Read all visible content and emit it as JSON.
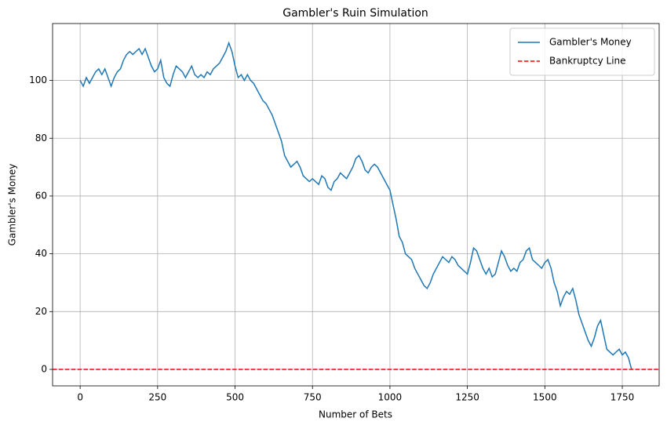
{
  "chart_data": {
    "type": "line",
    "title": "Gambler's Ruin Simulation",
    "xlabel": "Number of Bets",
    "ylabel": "Gambler's Money",
    "x": [
      0,
      10,
      20,
      30,
      40,
      50,
      60,
      70,
      80,
      90,
      100,
      110,
      120,
      130,
      140,
      150,
      160,
      170,
      180,
      190,
      200,
      210,
      220,
      230,
      240,
      250,
      260,
      270,
      280,
      290,
      300,
      310,
      320,
      330,
      340,
      350,
      360,
      370,
      380,
      390,
      400,
      410,
      420,
      430,
      440,
      450,
      460,
      470,
      480,
      490,
      500,
      510,
      520,
      530,
      540,
      550,
      560,
      570,
      580,
      590,
      600,
      610,
      620,
      630,
      640,
      650,
      660,
      670,
      680,
      690,
      700,
      710,
      720,
      730,
      740,
      750,
      760,
      770,
      780,
      790,
      800,
      810,
      820,
      830,
      840,
      850,
      860,
      870,
      880,
      890,
      900,
      910,
      920,
      930,
      940,
      950,
      960,
      970,
      980,
      990,
      1000,
      1010,
      1020,
      1030,
      1040,
      1050,
      1060,
      1070,
      1080,
      1090,
      1100,
      1110,
      1120,
      1130,
      1140,
      1150,
      1160,
      1170,
      1180,
      1190,
      1200,
      1210,
      1220,
      1230,
      1240,
      1250,
      1260,
      1270,
      1280,
      1290,
      1300,
      1310,
      1320,
      1330,
      1340,
      1350,
      1360,
      1370,
      1380,
      1390,
      1400,
      1410,
      1420,
      1430,
      1440,
      1450,
      1460,
      1470,
      1480,
      1490,
      1500,
      1510,
      1520,
      1530,
      1540,
      1550,
      1560,
      1570,
      1580,
      1590,
      1600,
      1610,
      1620,
      1630,
      1640,
      1650,
      1660,
      1670,
      1680,
      1690,
      1700,
      1710,
      1720,
      1730,
      1740,
      1750,
      1760,
      1770,
      1780
    ],
    "series": [
      {
        "name": "Gambler's Money",
        "color": "#1f77b4",
        "values": [
          100,
          98,
          101,
          99,
          101,
          103,
          104,
          102,
          104,
          101,
          98,
          101,
          103,
          104,
          107,
          109,
          110,
          109,
          110,
          111,
          109,
          111,
          108,
          105,
          103,
          104,
          107,
          101,
          99,
          98,
          102,
          105,
          104,
          103,
          101,
          103,
          105,
          102,
          101,
          102,
          101,
          103,
          102,
          104,
          105,
          106,
          108,
          110,
          113,
          110,
          105,
          101,
          102,
          100,
          102,
          100,
          99,
          97,
          95,
          93,
          92,
          90,
          88,
          85,
          82,
          79,
          74,
          72,
          70,
          71,
          72,
          70,
          67,
          66,
          65,
          66,
          65,
          64,
          67,
          66,
          63,
          62,
          65,
          66,
          68,
          67,
          66,
          68,
          70,
          73,
          74,
          72,
          69,
          68,
          70,
          71,
          70,
          68,
          66,
          64,
          62,
          57,
          52,
          46,
          44,
          40,
          39,
          38,
          35,
          33,
          31,
          29,
          28,
          30,
          33,
          35,
          37,
          39,
          38,
          37,
          39,
          38,
          36,
          35,
          34,
          33,
          37,
          42,
          41,
          38,
          35,
          33,
          35,
          32,
          33,
          37,
          41,
          39,
          36,
          34,
          35,
          34,
          37,
          38,
          41,
          42,
          38,
          37,
          36,
          35,
          37,
          38,
          35,
          30,
          27,
          22,
          25,
          27,
          26,
          28,
          24,
          19,
          16,
          13,
          10,
          8,
          11,
          15,
          17,
          12,
          7,
          6,
          5,
          6,
          7,
          5,
          6,
          4,
          0
        ]
      }
    ],
    "hlines": [
      {
        "name": "Bankruptcy Line",
        "value": 0,
        "color": "#ff0000",
        "style": "dashed"
      }
    ],
    "xlim": [
      -89,
      1869
    ],
    "ylim": [
      -5.7,
      119.7
    ],
    "xticks": [
      0,
      250,
      500,
      750,
      1000,
      1250,
      1500,
      1750
    ],
    "yticks": [
      0,
      20,
      40,
      60,
      80,
      100
    ],
    "grid": true,
    "legend": "upper right"
  }
}
